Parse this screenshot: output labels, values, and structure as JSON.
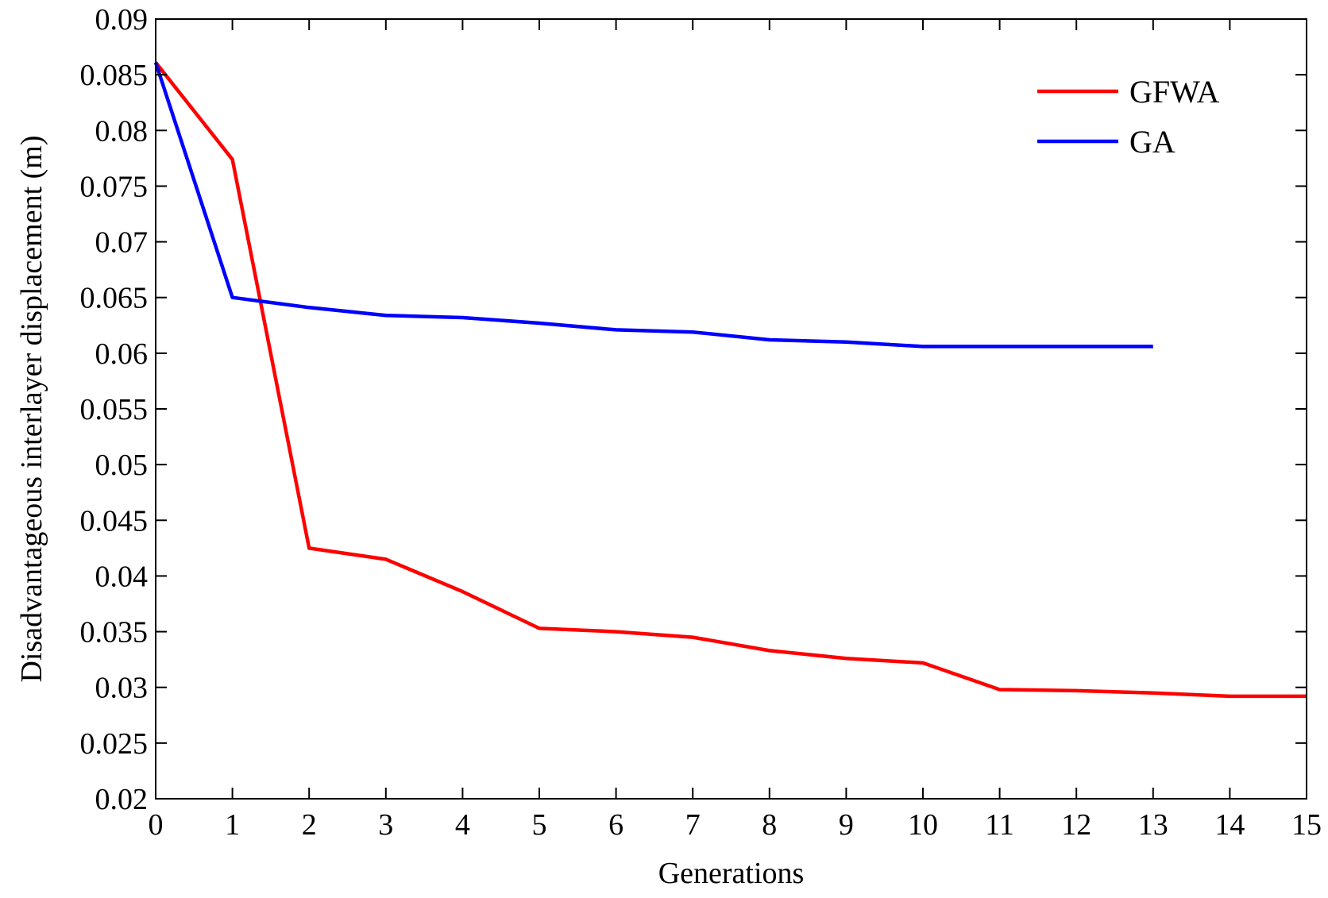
{
  "chart_data": {
    "type": "line",
    "title": "",
    "xlabel": "Generations",
    "ylabel": "Disadvantageous interlayer displacement (m)",
    "xlim": [
      0,
      15
    ],
    "ylim": [
      0.02,
      0.09
    ],
    "xticks": [
      0,
      1,
      2,
      3,
      4,
      5,
      6,
      7,
      8,
      9,
      10,
      11,
      12,
      13,
      14,
      15
    ],
    "xtick_labels": [
      "0",
      "1",
      "2",
      "3",
      "4",
      "5",
      "6",
      "7",
      "8",
      "9",
      "10",
      "11",
      "12",
      "13",
      "14",
      "15"
    ],
    "yticks": [
      0.02,
      0.025,
      0.03,
      0.035,
      0.04,
      0.045,
      0.05,
      0.055,
      0.06,
      0.065,
      0.07,
      0.075,
      0.08,
      0.085,
      0.09
    ],
    "ytick_labels": [
      "0.02",
      "0.025",
      "0.03",
      "0.035",
      "0.04",
      "0.045",
      "0.05",
      "0.055",
      "0.06",
      "0.065",
      "0.07",
      "0.075",
      "0.08",
      "0.085",
      "0.09"
    ],
    "grid": false,
    "legend_position": "top-right",
    "series": [
      {
        "name": "GFWA",
        "color": "#ff0000",
        "x": [
          0,
          1,
          2,
          3,
          4,
          5,
          6,
          7,
          8,
          9,
          10,
          11,
          12,
          13,
          14,
          15
        ],
        "y": [
          0.0861,
          0.0774,
          0.0425,
          0.0415,
          0.0386,
          0.0353,
          0.035,
          0.0345,
          0.0333,
          0.0326,
          0.0322,
          0.0298,
          0.0297,
          0.0295,
          0.0292,
          0.0292
        ]
      },
      {
        "name": "GA",
        "color": "#0000ff",
        "x": [
          0,
          1,
          2,
          3,
          4,
          5,
          6,
          7,
          8,
          9,
          10,
          11,
          12,
          13
        ],
        "y": [
          0.0861,
          0.065,
          0.0641,
          0.0634,
          0.0632,
          0.0627,
          0.0621,
          0.0619,
          0.0612,
          0.061,
          0.0606,
          0.0606,
          0.0606,
          0.0606
        ]
      }
    ]
  }
}
